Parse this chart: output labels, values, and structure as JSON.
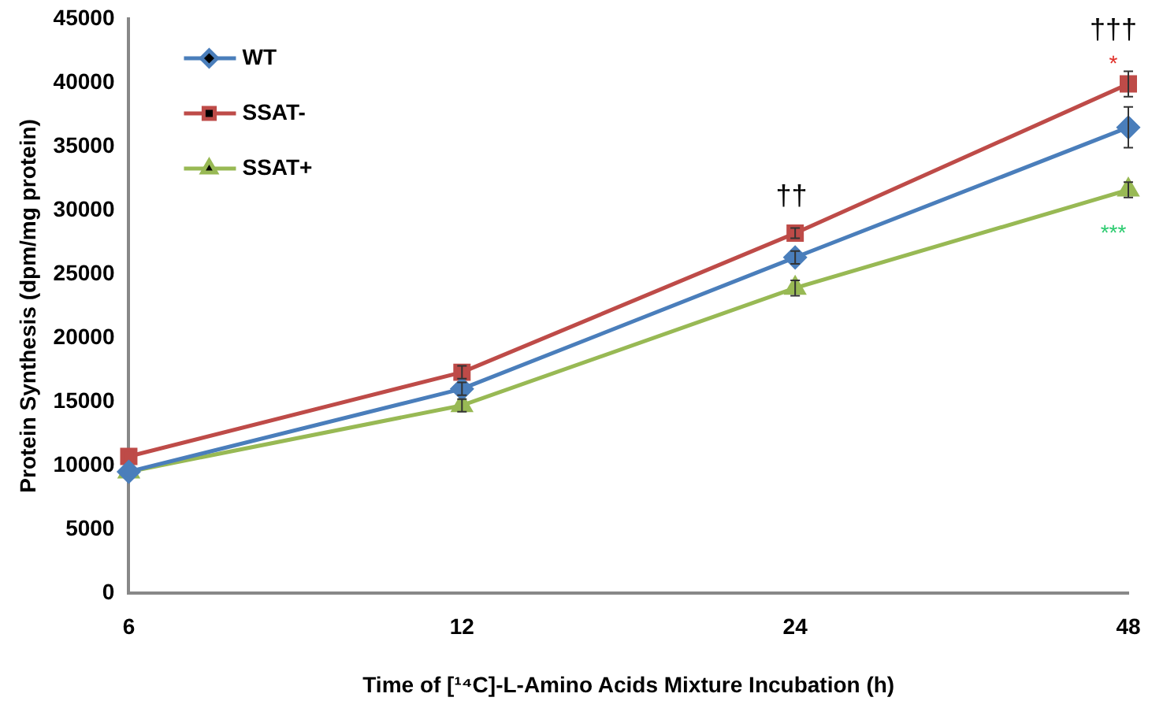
{
  "chart_data": {
    "type": "line",
    "xlabel": "Time of [¹⁴C]-L-Amino Acids Mixture Incubation (h)",
    "ylabel": "Protein Synthesis (dpm/mg protein)",
    "categories": [
      "6",
      "12",
      "24",
      "48"
    ],
    "series": [
      {
        "name": "WT",
        "color": "#4a7ebb",
        "marker": "diamond",
        "values": [
          9500,
          16000,
          26300,
          36500
        ],
        "errors": [
          null,
          500,
          500,
          1600
        ]
      },
      {
        "name": "SSAT-",
        "color": "#be4b48",
        "marker": "square",
        "values": [
          10700,
          17300,
          28200,
          39900
        ],
        "errors": [
          null,
          500,
          400,
          1000
        ]
      },
      {
        "name": "SSAT+",
        "color": "#98b954",
        "marker": "triangle",
        "values": [
          9500,
          14700,
          23900,
          31600
        ],
        "errors": [
          null,
          500,
          600,
          600
        ]
      }
    ],
    "ylim": [
      0,
      45000
    ],
    "yticks": [
      0,
      5000,
      10000,
      15000,
      20000,
      25000,
      30000,
      35000,
      40000,
      45000
    ],
    "grid": false,
    "legend": "top left",
    "line_style": "solid",
    "annotations": [
      "††",
      "†††",
      "*",
      "***"
    ]
  }
}
